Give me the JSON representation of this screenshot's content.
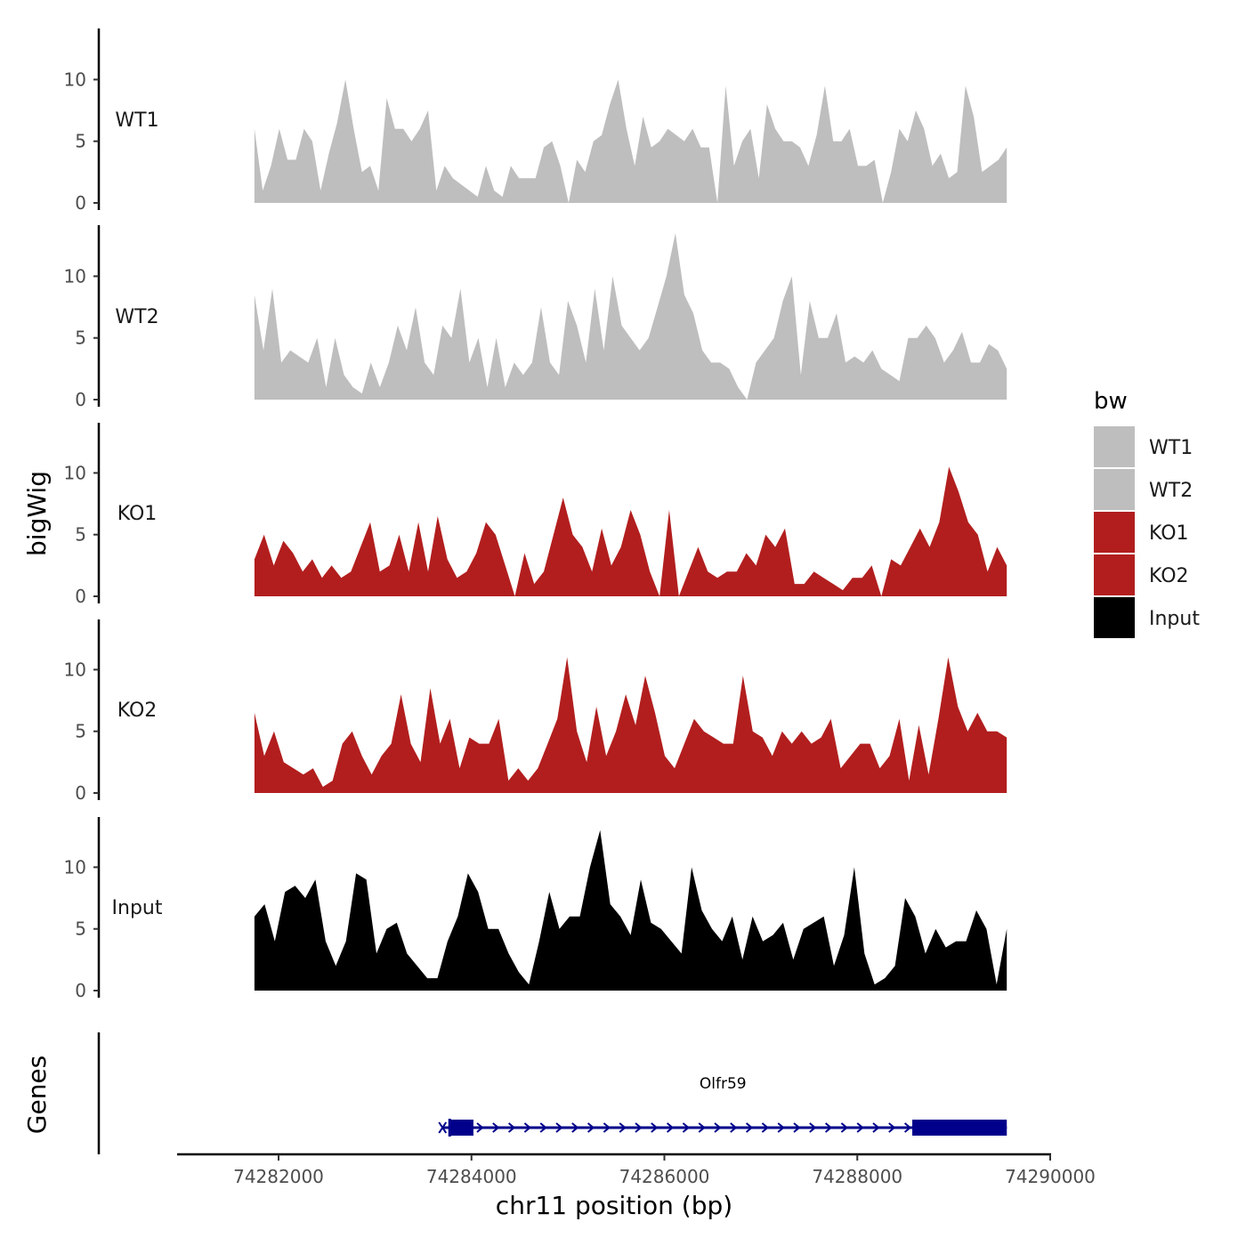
{
  "chart_data": {
    "type": "area",
    "y_axis_title": "bigWig",
    "x_axis_title": "chr11 position (bp)",
    "gene_axis_title": "Genes",
    "xlim": [
      74281300,
      74290000
    ],
    "region": [
      74281750,
      74289550
    ],
    "ylim": [
      0,
      14
    ],
    "yticks": [
      0,
      5,
      10
    ],
    "x_ticks": [
      74282000,
      74284000,
      74286000,
      74288000,
      74290000
    ],
    "x_tick_labels": [
      "74282000",
      "74284000",
      "74286000",
      "74288000",
      "74290000"
    ],
    "colors": {
      "WT1": "#bebebe",
      "WT2": "#bebebe",
      "KO1": "#b21e1e",
      "KO2": "#b21e1e",
      "Input": "#000000",
      "gene": "#00008b",
      "axis": "#000000"
    },
    "tracks": [
      {
        "name": "WT1",
        "color": "#bebebe",
        "start": 74281750,
        "end": 74289550,
        "values": [
          6,
          1,
          3,
          6,
          3.5,
          3.5,
          6,
          5,
          1,
          4,
          6.5,
          10,
          6,
          2.5,
          3,
          1,
          8.5,
          6,
          6,
          5,
          6,
          7.5,
          1,
          3,
          2,
          1.5,
          1,
          0.5,
          3,
          1,
          0.5,
          3,
          2,
          2,
          2,
          4.5,
          5,
          3,
          0,
          3.5,
          2.5,
          5,
          5.5,
          8,
          10,
          6,
          3,
          7,
          4.5,
          5,
          6,
          5.5,
          5,
          6,
          4.5,
          4.5,
          0,
          9.5,
          3,
          5,
          6,
          2,
          8,
          6,
          5,
          5,
          4.5,
          3,
          5.5,
          9.5,
          5,
          5,
          6,
          3,
          3,
          3.5,
          0,
          2.5,
          6,
          5,
          7.5,
          6,
          3,
          4,
          2,
          2.5,
          9.5,
          7,
          2.5,
          3,
          3.5,
          4.5
        ]
      },
      {
        "name": "WT2",
        "color": "#bebebe",
        "start": 74281750,
        "end": 74289550,
        "values": [
          8.5,
          4,
          9,
          3,
          4,
          3.5,
          3,
          5,
          1,
          5,
          2,
          1,
          0.5,
          3,
          1,
          3,
          6,
          4,
          7.5,
          3,
          2,
          6,
          5,
          9,
          3,
          5,
          1,
          5,
          1,
          3,
          2,
          3,
          7.5,
          3,
          2,
          8,
          6,
          3,
          9,
          4,
          10,
          6,
          5,
          4,
          5,
          7.5,
          10,
          13.5,
          8.5,
          7,
          4,
          3,
          3,
          2.5,
          1,
          0,
          3,
          4,
          5,
          8,
          10,
          2,
          8,
          5,
          5,
          7,
          3,
          3.5,
          3,
          4,
          2.5,
          2,
          1.5,
          5,
          5,
          6,
          5,
          3,
          4,
          5.5,
          3,
          3,
          4.5,
          4,
          2.5
        ]
      },
      {
        "name": "KO1",
        "color": "#b21e1e",
        "start": 74281750,
        "end": 74289550,
        "values": [
          3,
          5,
          2.5,
          4.5,
          3.5,
          2,
          3,
          1.5,
          2.5,
          1.5,
          2,
          4,
          6,
          2,
          2.5,
          5,
          2,
          6,
          2,
          6.5,
          3,
          1.5,
          2,
          3.5,
          6,
          5,
          2.5,
          0,
          3.5,
          1,
          2,
          5,
          8,
          5,
          4,
          2,
          5.5,
          2.5,
          4,
          7,
          5,
          2,
          0,
          7,
          0,
          2,
          4,
          2,
          1.5,
          2,
          2,
          3.5,
          2.5,
          5,
          4,
          5.5,
          1,
          1,
          2,
          1.5,
          1,
          0.5,
          1.5,
          1.5,
          2.5,
          0,
          3,
          2.5,
          4,
          5.5,
          4,
          6,
          10.5,
          8.5,
          6,
          5,
          2,
          4,
          2.5
        ]
      },
      {
        "name": "KO2",
        "color": "#b21e1e",
        "start": 74281750,
        "end": 74289550,
        "values": [
          6.5,
          3,
          5,
          2.5,
          2,
          1.5,
          2,
          0.5,
          1,
          4,
          5,
          3,
          1.5,
          3,
          4,
          8,
          4,
          2.5,
          8.5,
          4,
          6,
          2,
          4.5,
          4,
          4,
          6,
          1,
          2,
          1,
          2,
          4,
          6,
          11,
          5,
          2.5,
          7,
          3,
          5,
          8,
          5.5,
          9.5,
          6.5,
          3,
          2,
          4,
          6,
          5,
          4.5,
          4,
          4,
          9.5,
          5,
          4.5,
          3,
          5,
          4,
          5,
          4,
          4.5,
          6,
          2,
          3,
          4,
          4,
          2,
          3,
          6,
          1,
          5.5,
          1.5,
          6,
          11,
          7,
          5,
          6.5,
          5,
          5,
          4.5
        ]
      },
      {
        "name": "Input",
        "color": "#000000",
        "start": 74281750,
        "end": 74289550,
        "values": [
          6,
          7,
          4,
          8,
          8.5,
          7.5,
          9,
          4,
          2,
          4,
          9.5,
          9,
          3,
          5,
          5.5,
          3,
          2,
          1,
          1,
          4,
          6,
          9.5,
          8,
          5,
          5,
          3,
          1.5,
          0.5,
          4,
          8,
          5,
          6,
          6,
          10,
          13,
          7,
          6,
          4.5,
          9,
          5.5,
          5,
          4,
          3,
          10,
          6.5,
          5,
          4,
          6,
          2.5,
          6,
          4,
          4.5,
          5.5,
          2.5,
          5,
          5.5,
          6,
          2,
          4.5,
          10,
          3,
          0.5,
          1,
          2,
          7.5,
          6,
          3,
          5,
          3.5,
          4,
          4,
          6.5,
          5,
          0.5,
          5
        ]
      }
    ],
    "legend": {
      "title": "bw",
      "entries": [
        {
          "label": "WT1",
          "color": "#bebebe"
        },
        {
          "label": "WT2",
          "color": "#bebebe"
        },
        {
          "label": "KO1",
          "color": "#b21e1e"
        },
        {
          "label": "KO2",
          "color": "#b21e1e"
        },
        {
          "label": "Input",
          "color": "#000000"
        }
      ]
    },
    "gene": {
      "name": "Olfr59",
      "start": 74283700,
      "end": 74289550,
      "strand": "+",
      "exons": [
        [
          74283780,
          74284020
        ],
        [
          74288570,
          74289550
        ]
      ]
    }
  }
}
